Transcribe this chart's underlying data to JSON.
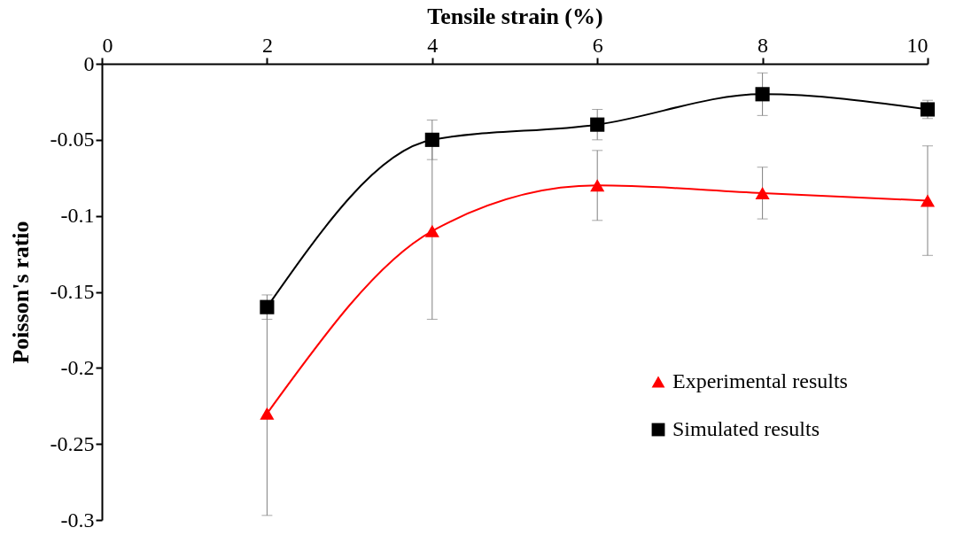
{
  "chart_data": {
    "type": "line",
    "xlabel": "Tensile strain (%)",
    "ylabel": "Poisson's ratio",
    "x": [
      2,
      4,
      6,
      8,
      10
    ],
    "series": [
      {
        "name": "Experimental results",
        "color": "#ff0000",
        "marker": "triangle",
        "values": [
          -0.23,
          -0.11,
          -0.08,
          -0.085,
          -0.09
        ],
        "errors": [
          0.067,
          0.058,
          0.023,
          0.017,
          0.036
        ]
      },
      {
        "name": "Simulated results",
        "color": "#000000",
        "marker": "square",
        "values": [
          -0.16,
          -0.05,
          -0.04,
          -0.02,
          -0.03
        ],
        "errors": [
          0.008,
          0.013,
          0.01,
          0.014,
          0.006
        ]
      }
    ],
    "xlim": [
      0,
      10
    ],
    "xticks": [
      0,
      2,
      4,
      6,
      8,
      10
    ],
    "ylim": [
      -0.3,
      0
    ],
    "yticks": [
      0,
      -0.05,
      -0.1,
      -0.15,
      -0.2,
      -0.25,
      -0.3
    ],
    "grid": false,
    "legend": "bottom right",
    "line_style": "solid"
  }
}
